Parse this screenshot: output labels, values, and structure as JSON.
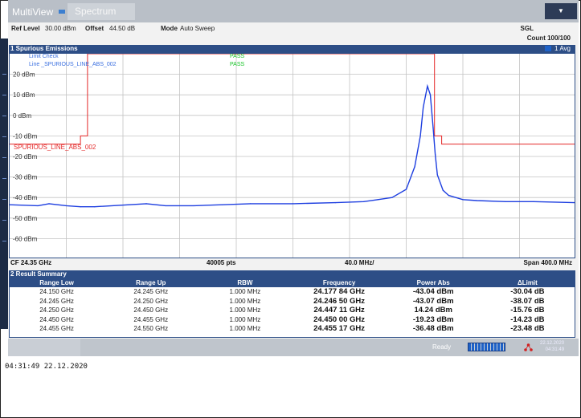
{
  "tabs": {
    "multiview": "MultiView",
    "spectrum": "Spectrum"
  },
  "menu_icon": "dropdown-arrow-icon",
  "settings": {
    "ref_level_label": "Ref Level",
    "ref_level_value": "30.00 dBm",
    "offset_label": "Offset",
    "offset_value": "44.50 dB",
    "mode_label": "Mode",
    "mode_value": "Auto Sweep",
    "sgl": "SGL",
    "count": "Count 100/100"
  },
  "diagram": {
    "title": "1 Spurious Emissions",
    "trace_label": "1 Avg",
    "limit_check": "Limit Check",
    "limit_line": "Line _SPURIOUS_LINE_ABS_002",
    "pass1": "PASS",
    "pass2": "PASS",
    "limit_label": "SPURIOUS_LINE_ABS_002",
    "cf": "CF 24.35 GHz",
    "points": "40005 pts",
    "div": "40.0 MHz/",
    "span": "Span 400.0 MHz"
  },
  "chart_data": {
    "type": "line",
    "ylim": [
      -70,
      30
    ],
    "xlim_ghz": [
      24.15,
      24.55
    ],
    "y_ticks": [
      "20 dBm",
      "10 dBm",
      "0 dBm",
      "-10 dBm",
      "-20 dBm",
      "-30 dBm",
      "-40 dBm",
      "-50 dBm",
      "-60 dBm"
    ],
    "y_tick_values": [
      20,
      10,
      0,
      -10,
      -20,
      -30,
      -40,
      -50,
      -60
    ],
    "grid": true,
    "series": [
      {
        "x": [
          24.15,
          24.17,
          24.1778,
          24.19,
          24.2,
          24.21,
          24.2465,
          24.26,
          24.28,
          24.3,
          24.32,
          24.35,
          24.38,
          24.4,
          24.41,
          24.42,
          24.43,
          24.436,
          24.44,
          24.442,
          24.445,
          24.447,
          24.449,
          24.4505,
          24.452,
          24.456,
          24.46,
          24.47,
          24.48,
          24.5,
          24.52,
          24.55
        ],
        "values": [
          -43.5,
          -44,
          -43,
          -44,
          -44.5,
          -44.5,
          -43,
          -44,
          -44,
          -43.5,
          -43,
          -43,
          -42.5,
          -42,
          -41,
          -40,
          -36,
          -25,
          -10,
          4,
          14.2,
          10,
          -6,
          -19,
          -29,
          -36.5,
          -39,
          -41,
          -41.5,
          -42,
          -42,
          -42.5
        ]
      }
    ],
    "limit_line": [
      {
        "x": 24.15,
        "y": -14
      },
      {
        "x": 24.2,
        "y": -14
      },
      {
        "x": 24.2,
        "y": -10
      },
      {
        "x": 24.205,
        "y": -10
      },
      {
        "x": 24.205,
        "y": 30
      },
      {
        "x": 24.45,
        "y": 30
      },
      {
        "x": 24.45,
        "y": -10
      },
      {
        "x": 24.455,
        "y": -10
      },
      {
        "x": 24.455,
        "y": -14
      },
      {
        "x": 24.55,
        "y": -14
      }
    ],
    "limit_color": "#e42727",
    "trace_color": "#1e3fe0"
  },
  "results": {
    "title": "2 Result Summary",
    "columns": [
      "Range Low",
      "Range Up",
      "RBW",
      "Frequency",
      "Power Abs",
      "ΔLimit"
    ],
    "rows": [
      [
        "24.150 GHz",
        "24.245 GHz",
        "1.000 MHz",
        "24.177 84 GHz",
        "-43.04 dBm",
        "-30.04 dB"
      ],
      [
        "24.245 GHz",
        "24.250 GHz",
        "1.000 MHz",
        "24.246 50 GHz",
        "-43.07 dBm",
        "-38.07 dB"
      ],
      [
        "24.250 GHz",
        "24.450 GHz",
        "1.000 MHz",
        "24.447 11 GHz",
        "14.24 dBm",
        "-15.76 dB"
      ],
      [
        "24.450 GHz",
        "24.455 GHz",
        "1.000 MHz",
        "24.450 00 GHz",
        "-19.23 dBm",
        "-14.23 dB"
      ],
      [
        "24.455 GHz",
        "24.550 GHz",
        "1.000 MHz",
        "24.455 17 GHz",
        "-36.48 dBm",
        "-23.48 dB"
      ]
    ]
  },
  "status": {
    "ready": "Ready",
    "date": "22.12.2020",
    "time": "04:31:49",
    "network_icon": "network-icon"
  },
  "timestamp": "04:31:49  22.12.2020"
}
